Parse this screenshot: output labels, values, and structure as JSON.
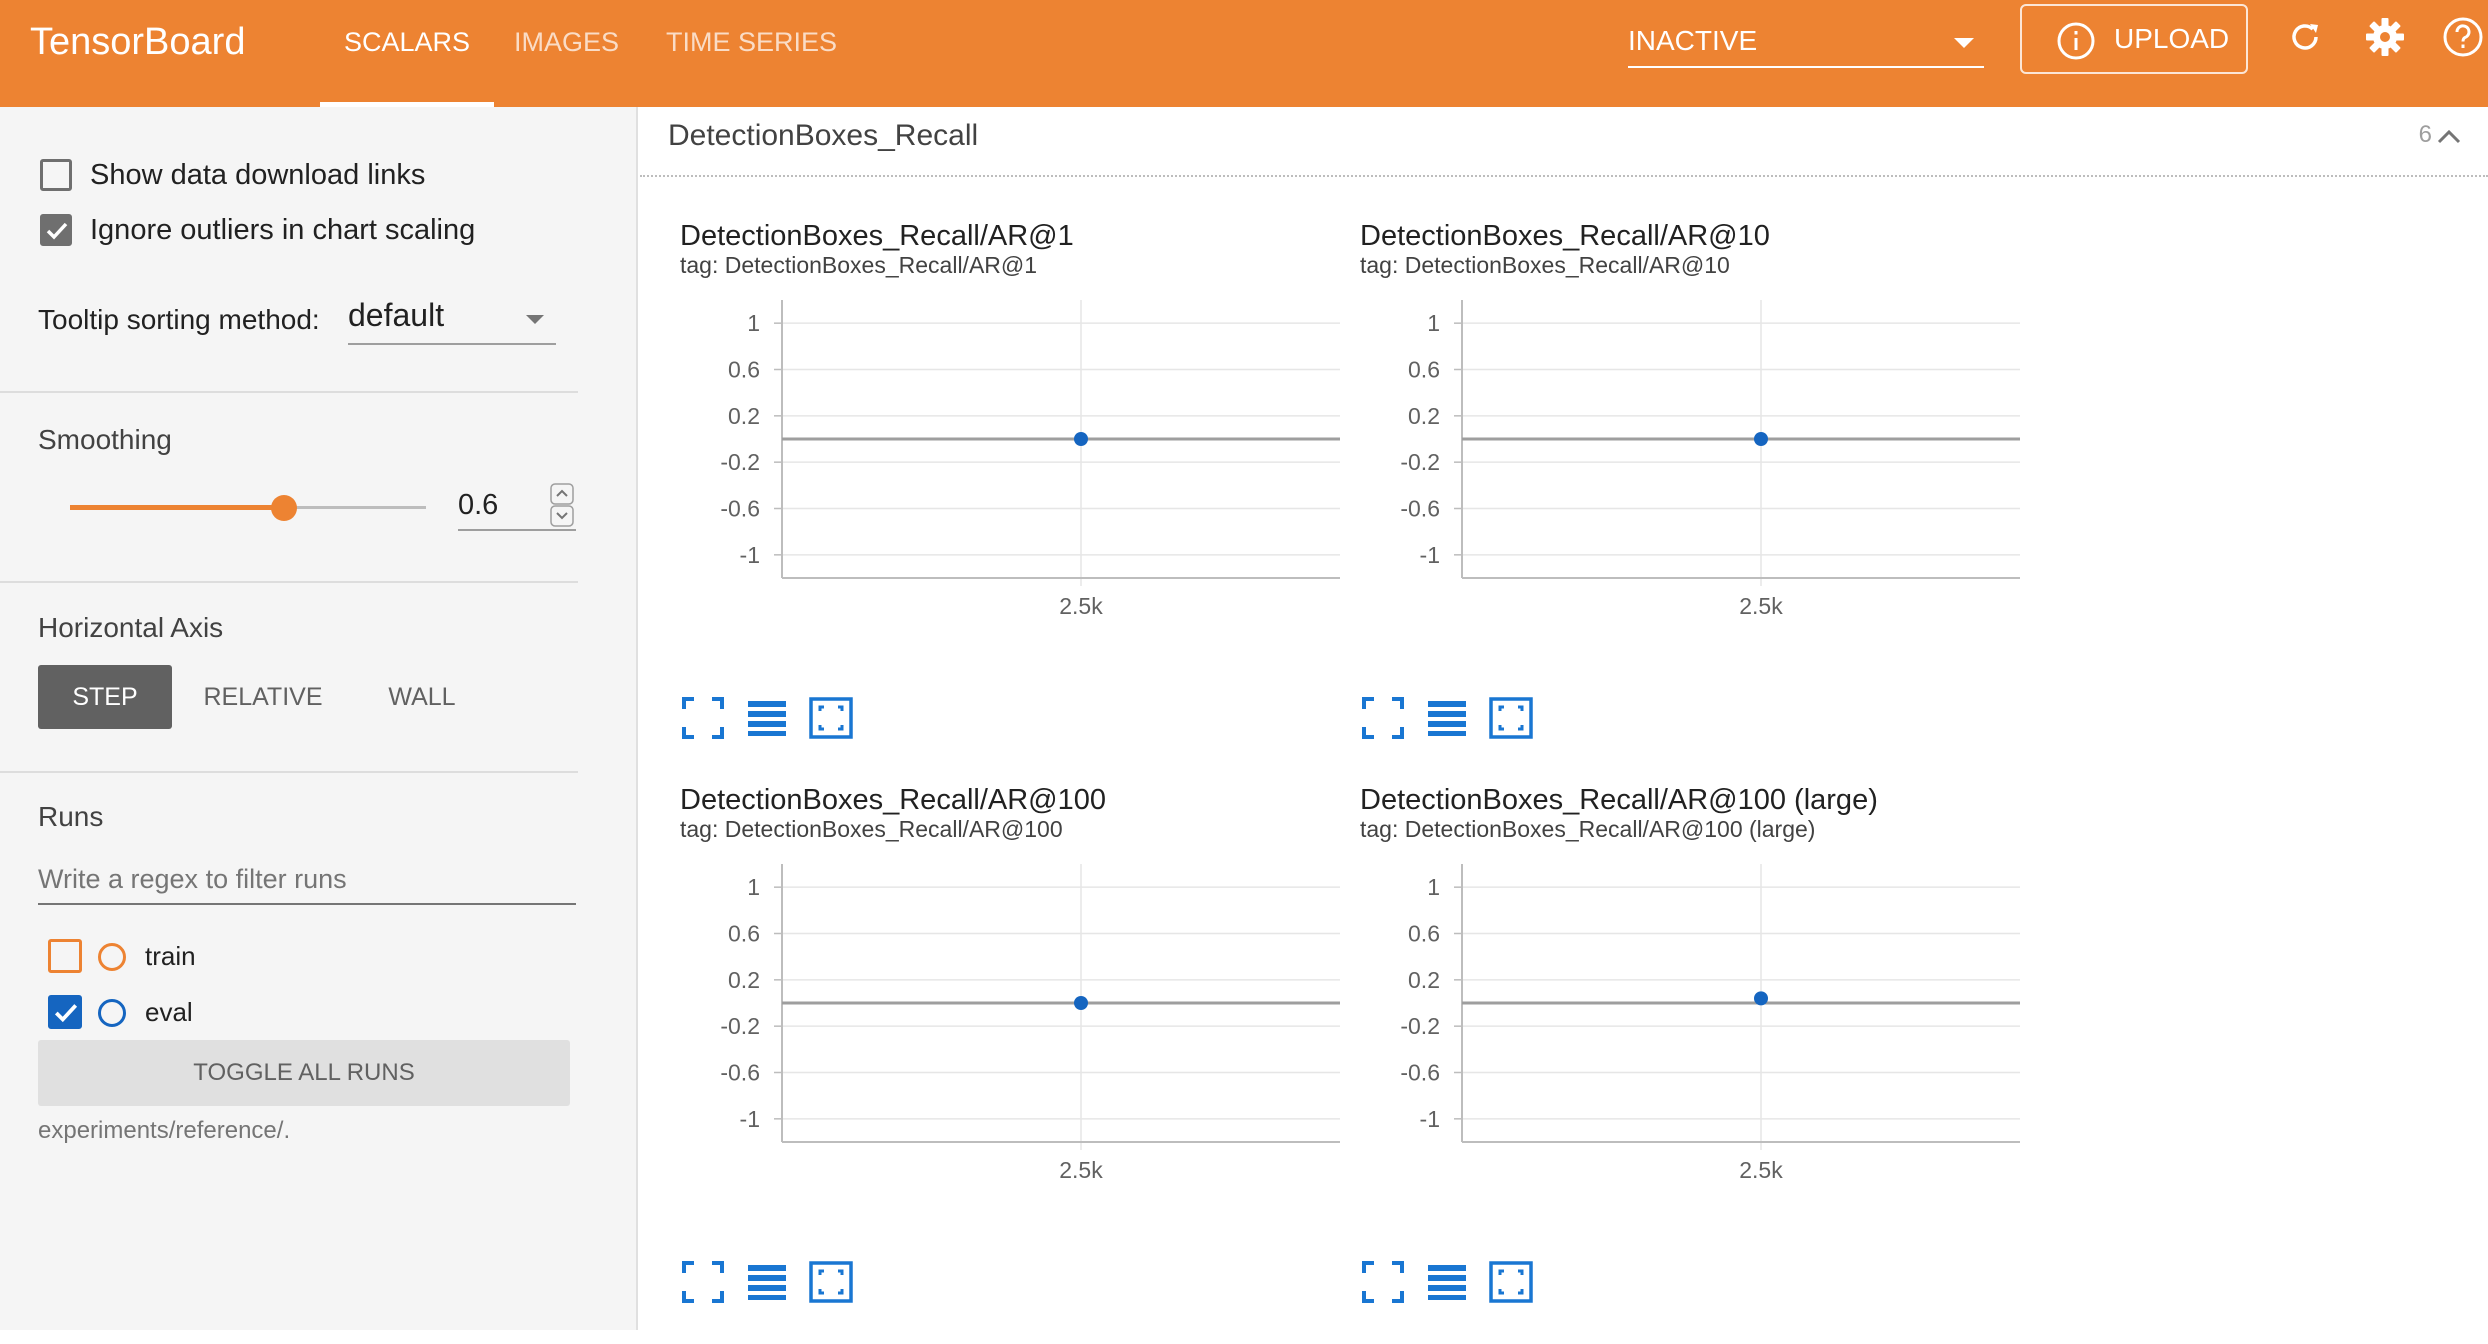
{
  "header": {
    "brand": "TensorBoard",
    "tabs": [
      {
        "label": "SCALARS",
        "active": true
      },
      {
        "label": "IMAGES",
        "active": false
      },
      {
        "label": "TIME SERIES",
        "active": false
      }
    ],
    "run_select": "INACTIVE",
    "upload_label": "UPLOAD",
    "icons": [
      "info-icon",
      "refresh-icon",
      "settings-icon",
      "help-icon"
    ],
    "color": "#ed8332"
  },
  "sidebar": {
    "show_download_links": {
      "label": "Show data download links",
      "checked": false
    },
    "ignore_outliers": {
      "label": "Ignore outliers in chart scaling",
      "checked": true
    },
    "tooltip_label": "Tooltip sorting method:",
    "tooltip_value": "default",
    "smoothing_title": "Smoothing",
    "smoothing_value": "0.6",
    "smoothing_fraction": 0.6,
    "axis_title": "Horizontal Axis",
    "axis_options": [
      {
        "label": "STEP",
        "active": true
      },
      {
        "label": "RELATIVE",
        "active": false
      },
      {
        "label": "WALL",
        "active": false
      }
    ],
    "runs_title": "Runs",
    "runs_filter_placeholder": "Write a regex to filter runs",
    "runs": [
      {
        "name": "train",
        "checked": false,
        "color": "#ed8332"
      },
      {
        "name": "eval",
        "checked": true,
        "color": "#1565c0"
      }
    ],
    "toggle_all_label": "TOGGLE ALL RUNS",
    "logdir": "experiments/reference/."
  },
  "group": {
    "title": "DetectionBoxes_Recall",
    "count": "6"
  },
  "charts": [
    {
      "title": "DetectionBoxes_Recall/AR@1",
      "tag": "tag: DetectionBoxes_Recall/AR@1"
    },
    {
      "title": "DetectionBoxes_Recall/AR@10",
      "tag": "tag: DetectionBoxes_Recall/AR@10"
    },
    {
      "title": "DetectionBoxes_Recall/AR@100",
      "tag": "tag: DetectionBoxes_Recall/AR@100"
    },
    {
      "title": "DetectionBoxes_Recall/AR@100 (large)",
      "tag": "tag: DetectionBoxes_Recall/AR@100 (large)"
    }
  ],
  "chart_data": [
    {
      "type": "scatter",
      "title": "DetectionBoxes_Recall/AR@1",
      "x": [
        2500
      ],
      "values": [
        0.0
      ],
      "ylim": [
        -1.2,
        1.2
      ],
      "yticks": [
        "1",
        "0.6",
        "0.2",
        "-0.2",
        "-0.6",
        "-1"
      ],
      "xticks": [
        "2.5k"
      ],
      "grid": true,
      "color": "#1565c0"
    },
    {
      "type": "scatter",
      "title": "DetectionBoxes_Recall/AR@10",
      "x": [
        2500
      ],
      "values": [
        0.0
      ],
      "ylim": [
        -1.2,
        1.2
      ],
      "yticks": [
        "1",
        "0.6",
        "0.2",
        "-0.2",
        "-0.6",
        "-1"
      ],
      "xticks": [
        "2.5k"
      ],
      "grid": true,
      "color": "#1565c0"
    },
    {
      "type": "scatter",
      "title": "DetectionBoxes_Recall/AR@100",
      "x": [
        2500
      ],
      "values": [
        0.0
      ],
      "ylim": [
        -1.2,
        1.2
      ],
      "yticks": [
        "1",
        "0.6",
        "0.2",
        "-0.2",
        "-0.6",
        "-1"
      ],
      "xticks": [
        "2.5k"
      ],
      "grid": true,
      "color": "#1565c0"
    },
    {
      "type": "scatter",
      "title": "DetectionBoxes_Recall/AR@100 (large)",
      "x": [
        2500
      ],
      "values": [
        0.04
      ],
      "ylim": [
        -1.2,
        1.2
      ],
      "yticks": [
        "1",
        "0.6",
        "0.2",
        "-0.2",
        "-0.6",
        "-1"
      ],
      "xticks": [
        "2.5k"
      ],
      "grid": true,
      "color": "#1565c0"
    }
  ]
}
